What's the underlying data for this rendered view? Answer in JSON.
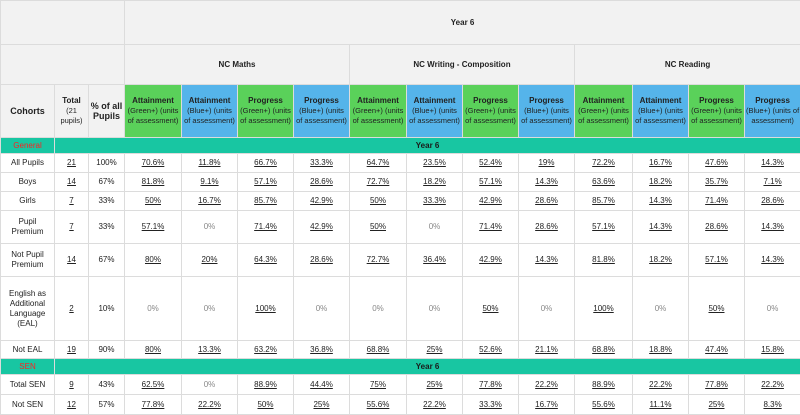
{
  "year_title": "Year 6",
  "subjects": [
    "NC Maths",
    "NC Writing - Composition",
    "NC Reading"
  ],
  "cohorts_label": "Cohorts",
  "total_label": "Total",
  "total_sub": "(21 pupils)",
  "pct_label": "% of all Pupils",
  "measures": [
    {
      "title": "Attainment",
      "sub": "(Green+) (units of assessment)",
      "color": "#5ad15a"
    },
    {
      "title": "Attainment",
      "sub": "(Blue+) (units of assessment)",
      "color": "#55b4ea"
    },
    {
      "title": "Progress",
      "sub": "(Green+) (units of assessment)",
      "color": "#5ad15a"
    },
    {
      "title": "Progress",
      "sub": "(Blue+) (units of assessment)",
      "color": "#55b4ea"
    }
  ],
  "sections": [
    {
      "label": "General",
      "banner": "Year 6",
      "rows": [
        {
          "cohort": "All Pupils",
          "total": "21",
          "pct": "100%",
          "values": [
            "70.6%",
            "11.8%",
            "66.7%",
            "33.3%",
            "64.7%",
            "23.5%",
            "52.4%",
            "19%",
            "72.2%",
            "16.7%",
            "47.6%",
            "14.3%"
          ]
        },
        {
          "cohort": "Boys",
          "total": "14",
          "pct": "67%",
          "values": [
            "81.8%",
            "9.1%",
            "57.1%",
            "28.6%",
            "72.7%",
            "18.2%",
            "57.1%",
            "14.3%",
            "63.6%",
            "18.2%",
            "35.7%",
            "7.1%"
          ]
        },
        {
          "cohort": "Girls",
          "total": "7",
          "pct": "33%",
          "values": [
            "50%",
            "16.7%",
            "85.7%",
            "42.9%",
            "50%",
            "33.3%",
            "42.9%",
            "28.6%",
            "85.7%",
            "14.3%",
            "71.4%",
            "28.6%"
          ]
        },
        {
          "cohort": "Pupil Premium",
          "total": "7",
          "pct": "33%",
          "values": [
            "57.1%",
            "0%",
            "71.4%",
            "42.9%",
            "50%",
            "0%",
            "71.4%",
            "28.6%",
            "57.1%",
            "14.3%",
            "28.6%",
            "14.3%"
          ]
        },
        {
          "cohort": "Not Pupil Premium",
          "total": "14",
          "pct": "67%",
          "values": [
            "80%",
            "20%",
            "64.3%",
            "28.6%",
            "72.7%",
            "36.4%",
            "42.9%",
            "14.3%",
            "81.8%",
            "18.2%",
            "57.1%",
            "14.3%"
          ]
        },
        {
          "cohort": "English as Additional Language (EAL)",
          "total": "2",
          "pct": "10%",
          "values": [
            "0%",
            "0%",
            "100%",
            "0%",
            "0%",
            "0%",
            "50%",
            "0%",
            "100%",
            "0%",
            "50%",
            "0%"
          ]
        },
        {
          "cohort": "Not EAL",
          "total": "19",
          "pct": "90%",
          "values": [
            "80%",
            "13.3%",
            "63.2%",
            "36.8%",
            "68.8%",
            "25%",
            "52.6%",
            "21.1%",
            "68.8%",
            "18.8%",
            "47.4%",
            "15.8%"
          ]
        }
      ]
    },
    {
      "label": "SEN",
      "banner": "Year 6",
      "rows": [
        {
          "cohort": "Total SEN",
          "total": "9",
          "pct": "43%",
          "values": [
            "62.5%",
            "0%",
            "88.9%",
            "44.4%",
            "75%",
            "25%",
            "77.8%",
            "22.2%",
            "88.9%",
            "22.2%",
            "77.8%",
            "22.2%"
          ]
        },
        {
          "cohort": "Not SEN",
          "total": "12",
          "pct": "57%",
          "values": [
            "77.8%",
            "22.2%",
            "50%",
            "25%",
            "55.6%",
            "22.2%",
            "33.3%",
            "16.7%",
            "55.6%",
            "11.1%",
            "25%",
            "8.3%"
          ]
        }
      ]
    }
  ]
}
